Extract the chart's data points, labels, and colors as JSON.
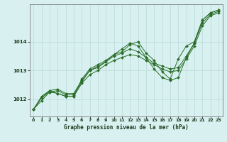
{
  "xlabel": "Graphe pression niveau de la mer (hPa)",
  "xlim": [
    -0.5,
    23.5
  ],
  "ylim": [
    1011.4,
    1015.3
  ],
  "yticks": [
    1012,
    1013,
    1014
  ],
  "xticks": [
    0,
    1,
    2,
    3,
    4,
    5,
    6,
    7,
    8,
    9,
    10,
    11,
    12,
    13,
    14,
    15,
    16,
    17,
    18,
    19,
    20,
    21,
    22,
    23
  ],
  "bg_color": "#d8f0f0",
  "grid_color": "#b8dada",
  "line_color": "#2a6e2a",
  "series": [
    [
      1011.65,
      1011.95,
      1012.25,
      1012.3,
      1012.15,
      1012.15,
      1012.6,
      1013.0,
      1013.1,
      1013.3,
      1013.55,
      1013.75,
      1013.95,
      1013.85,
      1013.45,
      1013.05,
      1012.75,
      1012.65,
      1012.75,
      1013.45,
      1013.95,
      1014.75,
      1015.0,
      1015.1
    ],
    [
      1011.65,
      1012.05,
      1012.3,
      1012.35,
      1012.2,
      1012.2,
      1012.65,
      1013.0,
      1013.15,
      1013.3,
      1013.5,
      1013.6,
      1013.75,
      1013.65,
      1013.45,
      1013.25,
      1013.15,
      1013.05,
      1013.1,
      1013.5,
      1013.95,
      1014.65,
      1014.95,
      1015.05
    ],
    [
      1011.65,
      1012.05,
      1012.25,
      1012.2,
      1012.1,
      1012.1,
      1012.55,
      1012.85,
      1013.0,
      1013.2,
      1013.35,
      1013.45,
      1013.55,
      1013.5,
      1013.35,
      1013.2,
      1013.05,
      1012.95,
      1013.0,
      1013.4,
      1013.85,
      1014.55,
      1014.9,
      1015.0
    ],
    [
      1011.65,
      1012.1,
      1012.3,
      1012.2,
      1012.1,
      1012.1,
      1012.7,
      1013.05,
      1013.2,
      1013.35,
      1013.55,
      1013.65,
      1013.9,
      1014.0,
      1013.6,
      1013.35,
      1012.95,
      1012.7,
      1013.4,
      1013.85,
      1014.0,
      1014.75,
      1015.0,
      1015.1
    ]
  ]
}
